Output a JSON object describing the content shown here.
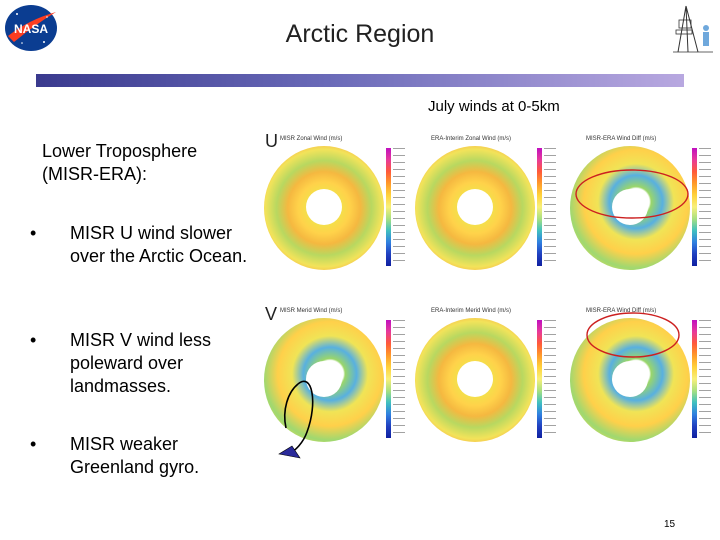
{
  "header": {
    "logo_text": "NASA",
    "title": "Arctic Region"
  },
  "subtitle": "July winds at 0-5km",
  "lead_text": "Lower Troposphere (MISR-ERA):",
  "bullets": [
    {
      "marker": "•",
      "text": "MISR U wind slower over the Arctic Ocean."
    },
    {
      "marker": "•",
      "text": "MISR V wind less poleward over landmasses."
    },
    {
      "marker": "•",
      "text": "MISR weaker Greenland gyro."
    }
  ],
  "rows": [
    {
      "label": "U",
      "panels": [
        {
          "title": "MISR Zonal Wind (m/s)"
        },
        {
          "title": "ERA-Interim Zonal Wind (m/s)"
        },
        {
          "title": "MISR-ERA Wind Diff (m/s)"
        }
      ]
    },
    {
      "label": "V",
      "panels": [
        {
          "title": "MISR Merid Wind (m/s)"
        },
        {
          "title": "ERA-Interim Merid Wind (m/s)"
        },
        {
          "title": "MISR-ERA Wind Diff (m/s)"
        }
      ]
    }
  ],
  "colors": {
    "title_bar_start": "#3a3a8e",
    "title_bar_end": "#b8a8e0",
    "highlight_ellipse": "#cc2020",
    "gyro_arrow": "#2a2a9a"
  },
  "page_number": "15"
}
